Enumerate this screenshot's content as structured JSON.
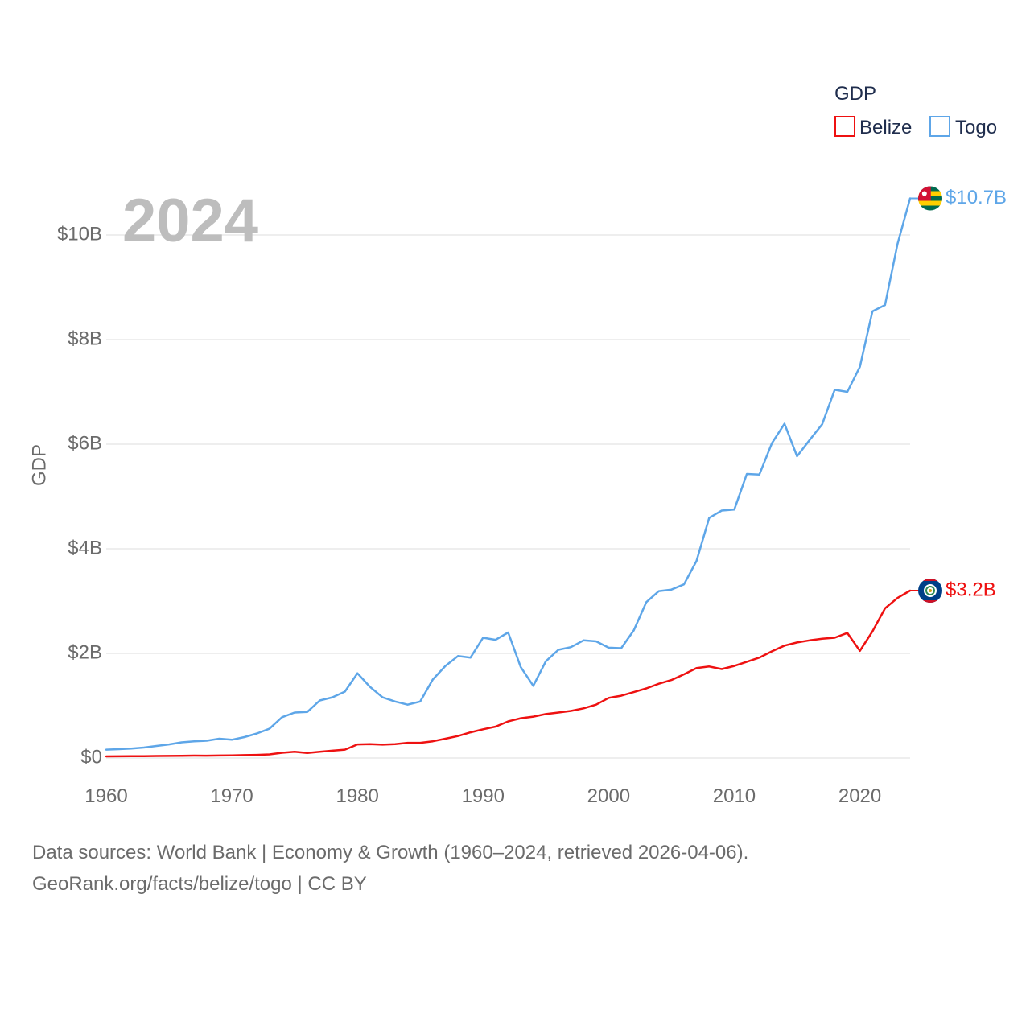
{
  "colors": {
    "belize": "#ee1111",
    "togo": "#5ea6e8",
    "grid": "#e8e8e8",
    "tick": "#6b6b6b"
  },
  "chart_data": {
    "type": "line",
    "title": "",
    "year_label": "2024",
    "xlabel": "",
    "ylabel": "GDP",
    "xlim": [
      1960,
      2024
    ],
    "ylim": [
      0,
      10700
    ],
    "y_unit": "million USD",
    "x_ticks": [
      1960,
      1970,
      1980,
      1990,
      2000,
      2010,
      2020
    ],
    "x_tick_labels": [
      "1960",
      "1970",
      "1980",
      "1990",
      "2000",
      "2010",
      "2020"
    ],
    "y_ticks": [
      0,
      2000,
      4000,
      6000,
      8000,
      10000
    ],
    "y_tick_labels": [
      "$0",
      "$2B",
      "$4B",
      "$6B",
      "$8B",
      "$10B"
    ],
    "grid": true,
    "legend": {
      "title": "GDP",
      "placement": "top-right",
      "entries": [
        "Belize",
        "Togo"
      ]
    },
    "x": [
      1960,
      1961,
      1962,
      1963,
      1964,
      1965,
      1966,
      1967,
      1968,
      1969,
      1970,
      1971,
      1972,
      1973,
      1974,
      1975,
      1976,
      1977,
      1978,
      1979,
      1980,
      1981,
      1982,
      1983,
      1984,
      1985,
      1986,
      1987,
      1988,
      1989,
      1990,
      1991,
      1992,
      1993,
      1994,
      1995,
      1996,
      1997,
      1998,
      1999,
      2000,
      2001,
      2002,
      2003,
      2004,
      2005,
      2006,
      2007,
      2008,
      2009,
      2010,
      2011,
      2012,
      2013,
      2014,
      2015,
      2016,
      2017,
      2018,
      2019,
      2020,
      2021,
      2022,
      2023,
      2024
    ],
    "series": [
      {
        "name": "Belize",
        "color": "#ee1111",
        "end_label": "$3.2B",
        "flag": "belize-flag-icon",
        "values": [
          30,
          32,
          34,
          36,
          38,
          40,
          43,
          46,
          44,
          47,
          50,
          55,
          60,
          70,
          100,
          120,
          95,
          120,
          140,
          160,
          260,
          265,
          255,
          265,
          290,
          290,
          320,
          370,
          420,
          490,
          550,
          600,
          700,
          760,
          790,
          840,
          870,
          900,
          950,
          1020,
          1150,
          1190,
          1260,
          1330,
          1420,
          1490,
          1600,
          1720,
          1750,
          1700,
          1760,
          1840,
          1920,
          2040,
          2150,
          2210,
          2250,
          2280,
          2300,
          2390,
          2050,
          2420,
          2860,
          3060,
          3200
        ]
      },
      {
        "name": "Togo",
        "color": "#5ea6e8",
        "end_label": "$10.7B",
        "flag": "togo-flag-icon",
        "values": [
          160,
          170,
          180,
          200,
          230,
          260,
          300,
          320,
          330,
          370,
          350,
          400,
          470,
          560,
          780,
          870,
          880,
          1100,
          1160,
          1270,
          1620,
          1360,
          1160,
          1080,
          1020,
          1080,
          1500,
          1760,
          1950,
          1920,
          2300,
          2260,
          2400,
          1740,
          1380,
          1850,
          2070,
          2120,
          2250,
          2230,
          2110,
          2100,
          2440,
          2980,
          3190,
          3220,
          3320,
          3770,
          4590,
          4730,
          4750,
          5430,
          5420,
          6020,
          6390,
          5770,
          6080,
          6380,
          7040,
          7000,
          7480,
          8540,
          8660,
          9830,
          10700
        ]
      }
    ]
  },
  "footer": {
    "line1": "Data sources: World Bank | Economy & Growth (1960–2024, retrieved 2026-04-06).",
    "line2": "GeoRank.org/facts/belize/togo | CC BY"
  }
}
